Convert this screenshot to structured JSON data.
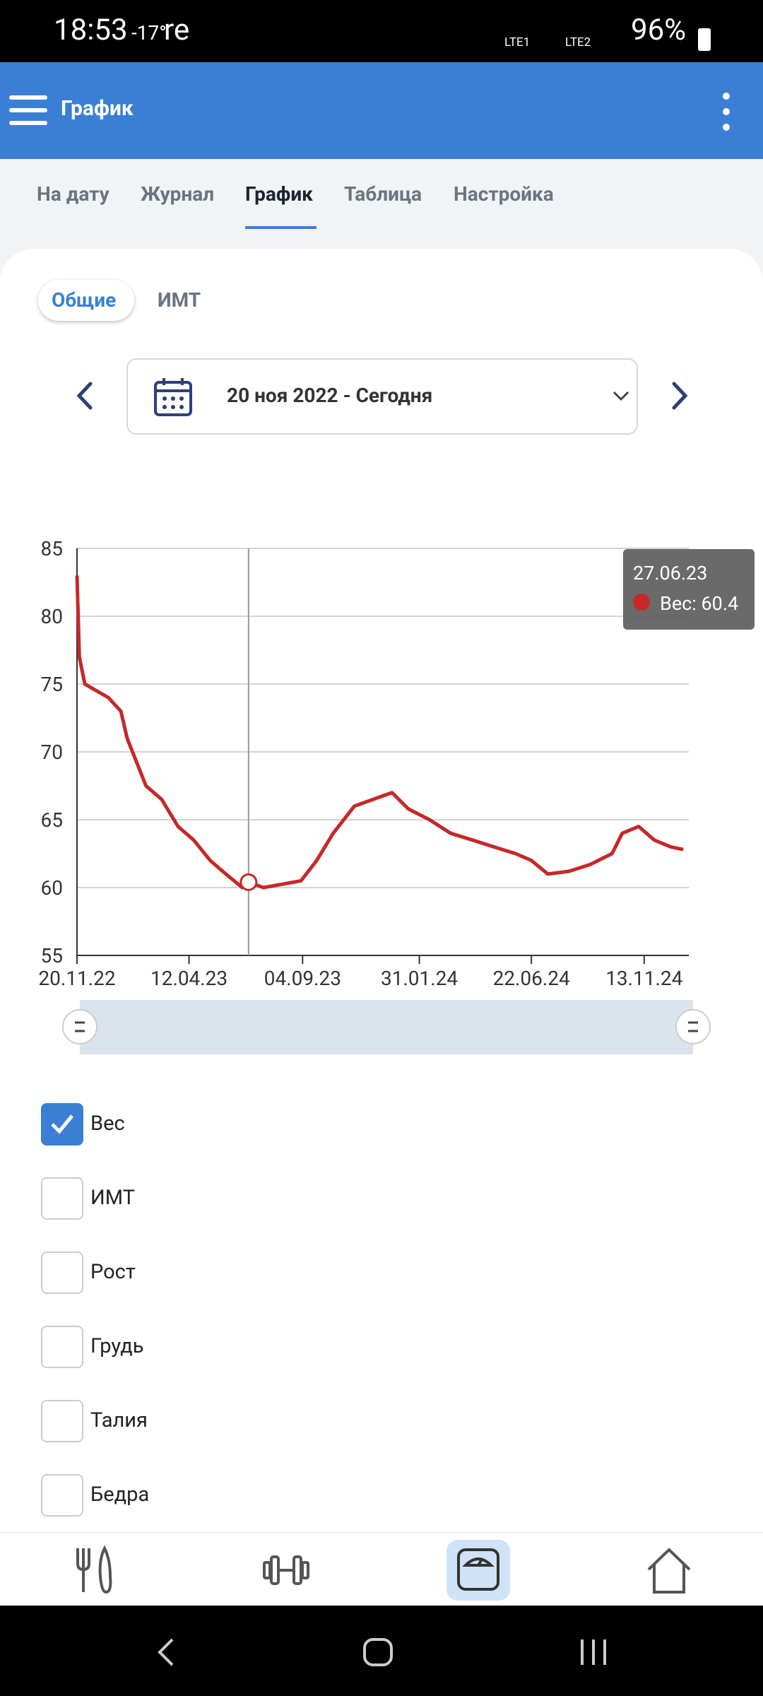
{
  "status_bar": {
    "time": "18:53",
    "temperature": "-17°",
    "carrier": "re",
    "network_1": "LTE1",
    "network_2": "LTE2",
    "battery": "96%"
  },
  "app_bar": {
    "title": "График"
  },
  "tabs": [
    "На дату",
    "Журнал",
    "График",
    "Таблица",
    "Настройка"
  ],
  "subtabs": [
    "Общие",
    "ИМТ"
  ],
  "date_range": "20 ноя 2022 - Сегодня",
  "chart_data": {
    "type": "line",
    "x": [
      "20.11.22",
      "23.11.22",
      "30.11.22",
      "30.12.22",
      "15.01.23",
      "23.01.23",
      "16.02.23",
      "08.03.23",
      "29.03.23",
      "18.04.23",
      "09.05.23",
      "29.05.23",
      "19.06.23",
      "27.06.23",
      "16.07.23",
      "02.09.23",
      "22.09.23",
      "13.10.23",
      "09.11.23",
      "27.12.23",
      "17.01.24",
      "13.02.24",
      "11.03.24",
      "08.04.24",
      "05.05.24",
      "02.06.24",
      "22.06.24",
      "13.07.24",
      "09.08.24",
      "05.09.24",
      "03.10.24",
      "16.10.24",
      "06.11.24",
      "26.11.24",
      "17.12.24",
      "02.01.25"
    ],
    "series": [
      {
        "name": "Вес",
        "color": "#c62828",
        "values": [
          83,
          77,
          75,
          74,
          73,
          71,
          67.5,
          66.5,
          64.5,
          63.5,
          62,
          61,
          60,
          60.4,
          60,
          60.5,
          62,
          64,
          66,
          67,
          65.8,
          65,
          64,
          63.5,
          63,
          62.5,
          62,
          61,
          61.2,
          61.7,
          62.5,
          64,
          64.5,
          63.5,
          63,
          62.8
        ]
      }
    ],
    "xlim": [
      "20.11.22",
      "09.01.25"
    ],
    "xticks": [
      "20.11.22",
      "12.04.23",
      "04.09.23",
      "31.01.24",
      "22.06.24",
      "13.11.24"
    ],
    "ylim": [
      55,
      85
    ],
    "yticks": [
      55,
      60,
      65,
      70,
      75,
      80,
      85
    ],
    "grid": true,
    "tooltip": {
      "date": "27.06.23",
      "text": "Вес: 60.4"
    }
  },
  "checkboxes": [
    {
      "label": "Вес",
      "checked": true
    },
    {
      "label": "ИМТ",
      "checked": false
    },
    {
      "label": "Рост",
      "checked": false
    },
    {
      "label": "Грудь",
      "checked": false
    },
    {
      "label": "Талия",
      "checked": false
    },
    {
      "label": "Бедра",
      "checked": false
    }
  ]
}
